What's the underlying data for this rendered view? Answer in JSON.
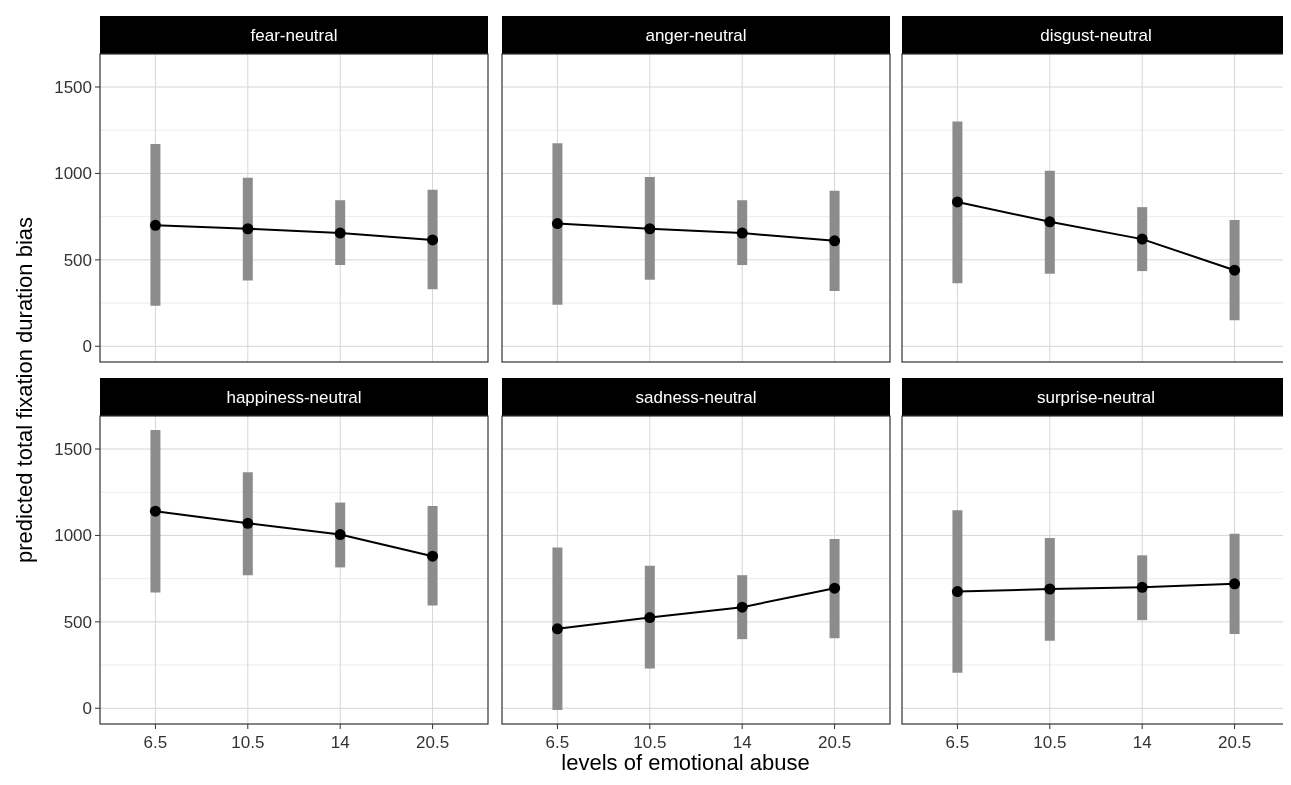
{
  "chart_data": [
    {
      "type": "line",
      "title": "fear-neutral",
      "ylabel": "predicted total fixation duration bias",
      "categories": [
        "6.5",
        "10.5",
        "14",
        "20.5"
      ],
      "series": [
        {
          "color": "#000000",
          "values": [
            700,
            680,
            655,
            615
          ],
          "errors": [
            [
              235,
              1170
            ],
            [
              380,
              975
            ],
            [
              470,
              845
            ],
            [
              330,
              905
            ]
          ]
        }
      ],
      "ylim": [
        -91,
        1691
      ],
      "yticks": [
        0,
        {
          "value": 250,
          "label": null
        },
        500,
        {
          "value": 750,
          "label": null
        },
        1000,
        {
          "value": 1250,
          "label": null
        },
        1500
      ],
      "grid": true,
      "marker": "circle",
      "tick_labels": "y"
    },
    {
      "type": "line",
      "title": "anger-neutral",
      "categories": [
        "6.5",
        "10.5",
        "14",
        "20.5"
      ],
      "series": [
        {
          "color": "#000000",
          "values": [
            710,
            680,
            655,
            610
          ],
          "errors": [
            [
              240,
              1175
            ],
            [
              385,
              980
            ],
            [
              470,
              845
            ],
            [
              320,
              900
            ]
          ]
        }
      ],
      "ylim": [
        -91,
        1691
      ],
      "yticks": [
        0,
        {
          "value": 250,
          "label": null
        },
        500,
        {
          "value": 750,
          "label": null
        },
        1000,
        {
          "value": 1250,
          "label": null
        },
        1500
      ],
      "grid": true,
      "marker": "circle",
      "tick_labels": false
    },
    {
      "type": "line",
      "title": "disgust-neutral",
      "categories": [
        "6.5",
        "10.5",
        "14",
        "20.5"
      ],
      "series": [
        {
          "color": "#000000",
          "values": [
            835,
            720,
            620,
            440
          ],
          "errors": [
            [
              365,
              1300
            ],
            [
              420,
              1015
            ],
            [
              435,
              805
            ],
            [
              150,
              730
            ]
          ]
        }
      ],
      "ylim": [
        -91,
        1691
      ],
      "yticks": [
        0,
        {
          "value": 250,
          "label": null
        },
        500,
        {
          "value": 750,
          "label": null
        },
        1000,
        {
          "value": 1250,
          "label": null
        },
        1500
      ],
      "grid": true,
      "marker": "circle",
      "tick_labels": false
    },
    {
      "type": "line",
      "title": "happiness-neutral",
      "categories": [
        "6.5",
        "10.5",
        "14",
        "20.5"
      ],
      "series": [
        {
          "color": "#000000",
          "values": [
            1140,
            1070,
            1005,
            880
          ],
          "errors": [
            [
              670,
              1610
            ],
            [
              770,
              1365
            ],
            [
              815,
              1190
            ],
            [
              595,
              1170
            ]
          ]
        }
      ],
      "ylim": [
        -91,
        1691
      ],
      "yticks": [
        0,
        {
          "value": 250,
          "label": null
        },
        500,
        {
          "value": 750,
          "label": null
        },
        1000,
        {
          "value": 1250,
          "label": null
        },
        1500
      ],
      "grid": true,
      "marker": "circle"
    },
    {
      "type": "line",
      "title": "sadness-neutral",
      "xlabel": "levels of emotional abuse",
      "categories": [
        "6.5",
        "10.5",
        "14",
        "20.5"
      ],
      "series": [
        {
          "color": "#000000",
          "values": [
            460,
            525,
            585,
            695
          ],
          "errors": [
            [
              -10,
              930
            ],
            [
              230,
              825
            ],
            [
              400,
              770
            ],
            [
              405,
              980
            ]
          ]
        }
      ],
      "ylim": [
        -91,
        1691
      ],
      "yticks": [
        0,
        {
          "value": 250,
          "label": null
        },
        500,
        {
          "value": 750,
          "label": null
        },
        1000,
        {
          "value": 1250,
          "label": null
        },
        1500
      ],
      "grid": true,
      "marker": "circle",
      "tick_labels": "x"
    },
    {
      "type": "line",
      "title": "surprise-neutral",
      "categories": [
        "6.5",
        "10.5",
        "14",
        "20.5"
      ],
      "series": [
        {
          "color": "#000000",
          "values": [
            675,
            690,
            700,
            720
          ],
          "errors": [
            [
              205,
              1145
            ],
            [
              390,
              985
            ],
            [
              510,
              885
            ],
            [
              430,
              1010
            ]
          ]
        }
      ],
      "ylim": [
        -91,
        1691
      ],
      "yticks": [
        0,
        {
          "value": 250,
          "label": null
        },
        500,
        {
          "value": 750,
          "label": null
        },
        1000,
        {
          "value": 1250,
          "label": null
        },
        1500
      ],
      "grid": true,
      "marker": "circle",
      "tick_labels": "x"
    }
  ]
}
